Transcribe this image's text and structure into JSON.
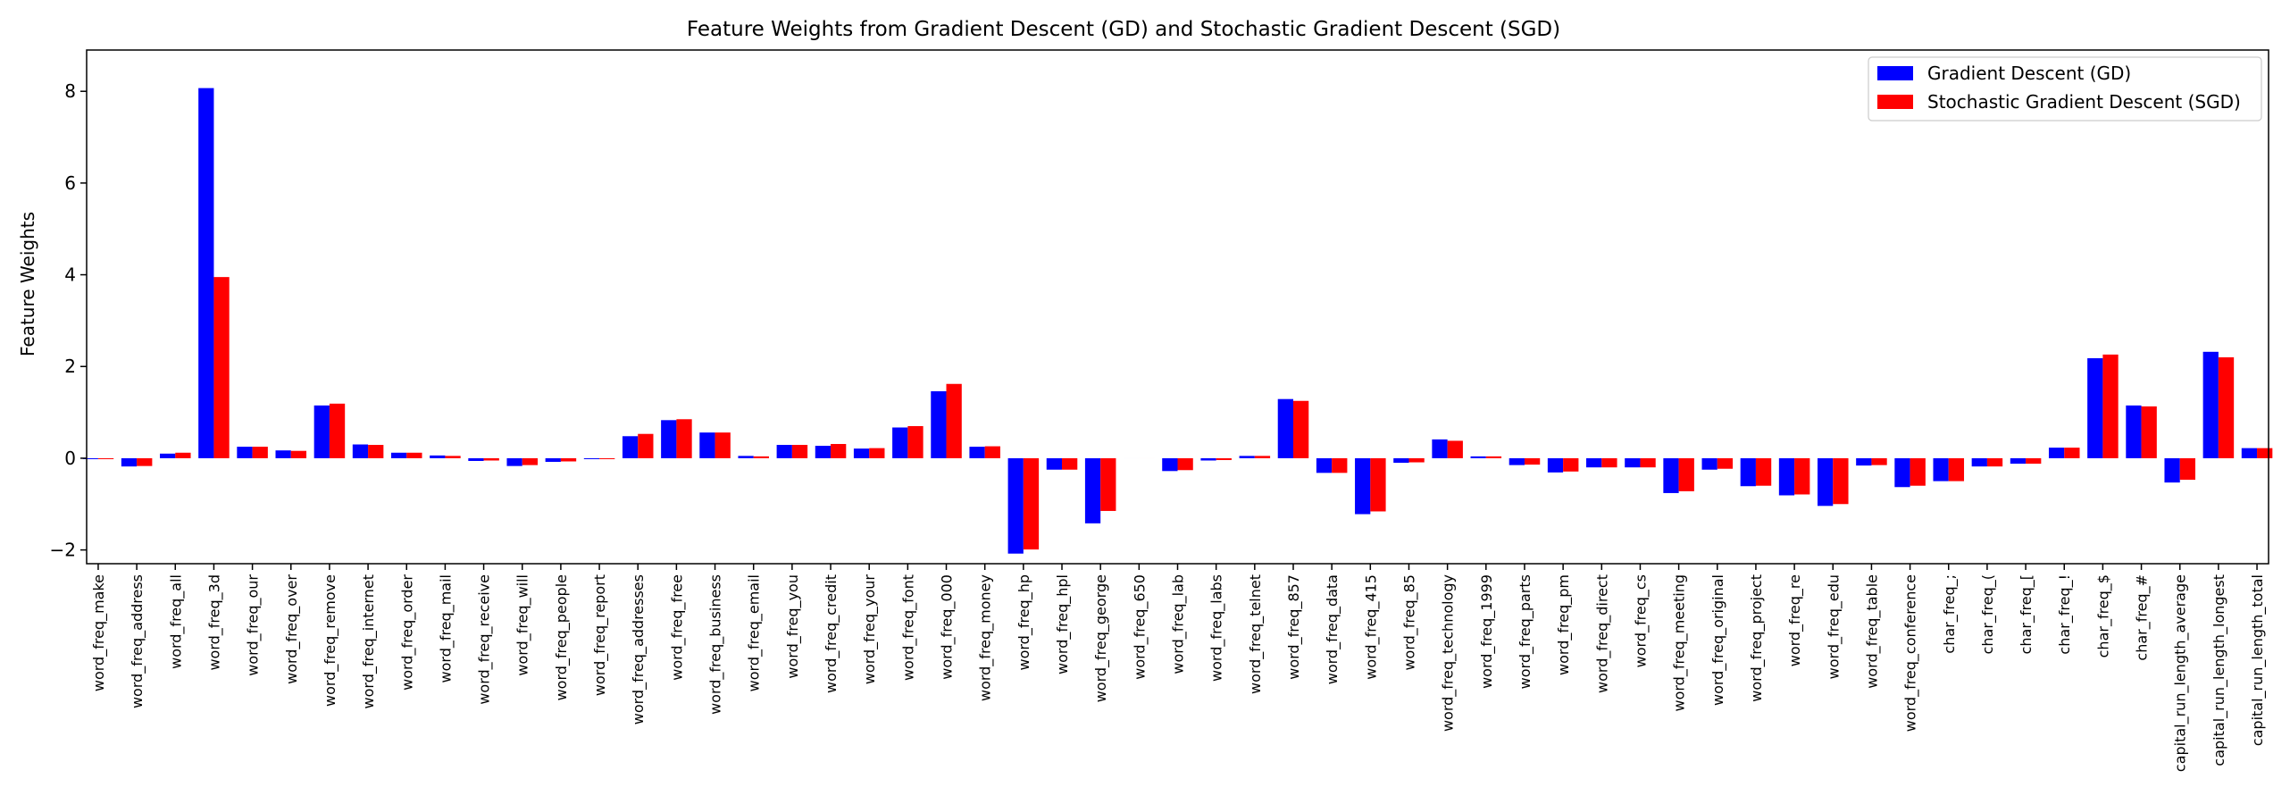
{
  "chart_data": {
    "type": "bar",
    "title": "Feature Weights from Gradient Descent (GD) and Stochastic Gradient Descent (SGD)",
    "xlabel": "",
    "ylabel": "Feature Weights",
    "ylim": [
      -2.3,
      8.9
    ],
    "yticks": [
      -2,
      0,
      2,
      4,
      6,
      8
    ],
    "grid": false,
    "legend_position": "top-right",
    "categories": [
      "word_freq_make",
      "word_freq_address",
      "word_freq_all",
      "word_freq_3d",
      "word_freq_our",
      "word_freq_over",
      "word_freq_remove",
      "word_freq_internet",
      "word_freq_order",
      "word_freq_mail",
      "word_freq_receive",
      "word_freq_will",
      "word_freq_people",
      "word_freq_report",
      "word_freq_addresses",
      "word_freq_free",
      "word_freq_business",
      "word_freq_email",
      "word_freq_you",
      "word_freq_credit",
      "word_freq_your",
      "word_freq_font",
      "word_freq_000",
      "word_freq_money",
      "word_freq_hp",
      "word_freq_hpl",
      "word_freq_george",
      "word_freq_650",
      "word_freq_lab",
      "word_freq_labs",
      "word_freq_telnet",
      "word_freq_857",
      "word_freq_data",
      "word_freq_415",
      "word_freq_85",
      "word_freq_technology",
      "word_freq_1999",
      "word_freq_parts",
      "word_freq_pm",
      "word_freq_direct",
      "word_freq_cs",
      "word_freq_meeting",
      "word_freq_original",
      "word_freq_project",
      "word_freq_re",
      "word_freq_edu",
      "word_freq_table",
      "word_freq_conference",
      "char_freq_;",
      "char_freq_(",
      "char_freq_[",
      "char_freq_!",
      "char_freq_$",
      "char_freq_#",
      "capital_run_length_average",
      "capital_run_length_longest",
      "capital_run_length_total"
    ],
    "series": [
      {
        "name": "Gradient Descent (GD)",
        "color": "#0000ff",
        "values": [
          -0.02,
          -0.18,
          0.1,
          8.07,
          0.25,
          0.17,
          1.15,
          0.3,
          0.12,
          0.06,
          -0.06,
          -0.17,
          -0.08,
          -0.02,
          0.48,
          0.83,
          0.56,
          0.05,
          0.29,
          0.27,
          0.21,
          0.67,
          1.46,
          0.25,
          -2.08,
          -0.25,
          -1.42,
          0.0,
          -0.28,
          -0.05,
          0.05,
          1.29,
          -0.32,
          -1.22,
          -0.1,
          0.41,
          0.04,
          -0.15,
          -0.31,
          -0.2,
          -0.2,
          -0.76,
          -0.25,
          -0.61,
          -0.81,
          -1.04,
          -0.16,
          -0.63,
          -0.5,
          -0.18,
          -0.12,
          0.23,
          2.18,
          1.15,
          -0.53,
          2.32,
          0.22
        ]
      },
      {
        "name": "Stochastic Gradient Descent (SGD)",
        "color": "#ff0000",
        "values": [
          -0.02,
          -0.17,
          0.12,
          3.95,
          0.25,
          0.16,
          1.19,
          0.29,
          0.12,
          0.05,
          -0.05,
          -0.15,
          -0.07,
          -0.02,
          0.53,
          0.85,
          0.56,
          0.04,
          0.29,
          0.31,
          0.22,
          0.7,
          1.62,
          0.26,
          -1.99,
          -0.25,
          -1.15,
          0.0,
          -0.26,
          -0.04,
          0.05,
          1.25,
          -0.32,
          -1.16,
          -0.09,
          0.38,
          0.04,
          -0.14,
          -0.29,
          -0.2,
          -0.2,
          -0.72,
          -0.23,
          -0.6,
          -0.79,
          -1.0,
          -0.15,
          -0.6,
          -0.5,
          -0.18,
          -0.12,
          0.23,
          2.26,
          1.13,
          -0.47,
          2.2,
          0.22
        ]
      }
    ]
  }
}
